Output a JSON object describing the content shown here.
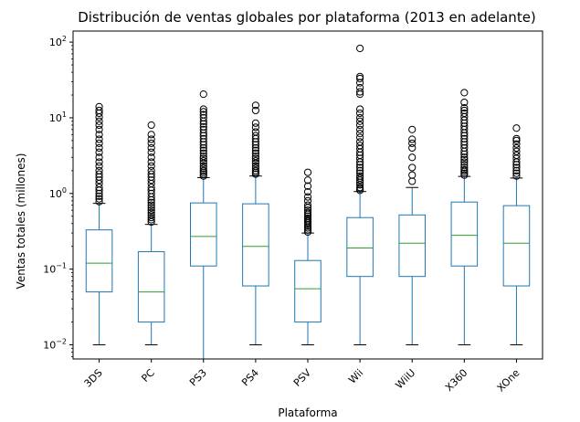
{
  "chart_data": {
    "type": "box",
    "title": "Distribución de ventas globales por plataforma (2013 en adelante)",
    "xlabel": "Plataforma",
    "ylabel": "Ventas totales (millones)",
    "yscale": "log",
    "ylim": [
      0.0065,
      140
    ],
    "yticks": [
      {
        "value": 0.01,
        "base": "10",
        "exp": "−2"
      },
      {
        "value": 0.1,
        "base": "10",
        "exp": "−1"
      },
      {
        "value": 1,
        "base": "10",
        "exp": "0"
      },
      {
        "value": 10,
        "base": "10",
        "exp": "1"
      },
      {
        "value": 100,
        "base": "10",
        "exp": "2"
      }
    ],
    "grid": false,
    "colors": {
      "box": "#1f77b4",
      "median": "#2ca02c",
      "whisker": "#1f77b4",
      "cap": "#000000",
      "flier": "#000000"
    },
    "categories": [
      "3DS",
      "PC",
      "PS3",
      "PS4",
      "PSV",
      "Wii",
      "WiiU",
      "X360",
      "XOne"
    ],
    "boxes": [
      {
        "name": "3DS",
        "whislo": 0.01,
        "q1": 0.05,
        "med": 0.12,
        "q3": 0.33,
        "whishi": 0.74,
        "fliers": [
          0.78,
          0.85,
          0.92,
          1.0,
          1.1,
          1.2,
          1.35,
          1.5,
          1.65,
          1.8,
          2.0,
          2.3,
          2.6,
          3.0,
          3.5,
          4.0,
          4.6,
          5.2,
          6.0,
          7.0,
          8.0,
          9.0,
          10.2,
          11.5,
          12.5,
          14.0
        ]
      },
      {
        "name": "PC",
        "whislo": 0.01,
        "q1": 0.02,
        "med": 0.05,
        "q3": 0.17,
        "whishi": 0.39,
        "fliers": [
          0.42,
          0.45,
          0.48,
          0.52,
          0.56,
          0.6,
          0.65,
          0.7,
          0.76,
          0.82,
          0.9,
          1.0,
          1.1,
          1.2,
          1.35,
          1.5,
          1.65,
          1.8,
          2.0,
          2.3,
          2.6,
          3.0,
          3.5,
          4.0,
          4.6,
          5.2,
          6.0,
          8.0
        ]
      },
      {
        "name": "PS3",
        "whislo": 0.005,
        "q1": 0.11,
        "med": 0.27,
        "q3": 0.75,
        "whishi": 1.62,
        "fliers": [
          1.7,
          1.8,
          1.9,
          2.0,
          2.15,
          2.3,
          2.5,
          2.7,
          2.9,
          3.1,
          3.4,
          3.7,
          4.0,
          4.4,
          4.8,
          5.3,
          5.8,
          6.3,
          7.0,
          7.6,
          8.3,
          9.0,
          10.0,
          11.0,
          12.0,
          13.0,
          20.5
        ]
      },
      {
        "name": "PS4",
        "whislo": 0.01,
        "q1": 0.06,
        "med": 0.2,
        "q3": 0.73,
        "whishi": 1.7,
        "fliers": [
          1.8,
          1.9,
          2.0,
          2.15,
          2.3,
          2.5,
          2.7,
          2.9,
          3.1,
          3.4,
          3.7,
          4.0,
          4.4,
          4.8,
          5.3,
          5.8,
          6.5,
          7.5,
          8.5,
          12.5,
          14.6
        ]
      },
      {
        "name": "PSV",
        "whislo": 0.01,
        "q1": 0.02,
        "med": 0.055,
        "q3": 0.13,
        "whishi": 0.3,
        "fliers": [
          0.31,
          0.33,
          0.35,
          0.37,
          0.39,
          0.41,
          0.43,
          0.45,
          0.47,
          0.5,
          0.53,
          0.56,
          0.6,
          0.65,
          0.7,
          0.8,
          0.9,
          1.05,
          1.25,
          1.5,
          1.9
        ]
      },
      {
        "name": "Wii",
        "whislo": 0.01,
        "q1": 0.08,
        "med": 0.19,
        "q3": 0.48,
        "whishi": 1.06,
        "fliers": [
          1.1,
          1.15,
          1.2,
          1.3,
          1.4,
          1.5,
          1.6,
          1.7,
          1.85,
          2.0,
          2.2,
          2.4,
          2.6,
          2.9,
          3.2,
          3.5,
          3.9,
          4.3,
          4.8,
          5.5,
          6.2,
          7.0,
          8.0,
          9.0,
          10.0,
          11.5,
          13.0,
          20.5,
          22.0,
          25.0,
          29.0,
          33.0,
          35.0,
          82.5
        ]
      },
      {
        "name": "WiiU",
        "whislo": 0.01,
        "q1": 0.08,
        "med": 0.22,
        "q3": 0.52,
        "whishi": 1.2,
        "fliers": [
          1.45,
          1.75,
          2.2,
          3.0,
          4.0,
          4.6,
          5.2,
          7.0
        ]
      },
      {
        "name": "X360",
        "whislo": 0.01,
        "q1": 0.11,
        "med": 0.28,
        "q3": 0.77,
        "whishi": 1.68,
        "fliers": [
          1.75,
          1.85,
          1.95,
          2.05,
          2.2,
          2.4,
          2.6,
          2.8,
          3.0,
          3.3,
          3.6,
          4.0,
          4.4,
          4.8,
          5.3,
          5.8,
          6.3,
          7.0,
          7.7,
          8.5,
          9.3,
          10.3,
          11.5,
          12.5,
          13.5,
          16.0,
          21.5
        ]
      },
      {
        "name": "XOne",
        "whislo": 0.01,
        "q1": 0.06,
        "med": 0.22,
        "q3": 0.69,
        "whishi": 1.6,
        "fliers": [
          1.7,
          1.85,
          2.0,
          2.2,
          2.4,
          2.6,
          2.9,
          3.2,
          3.6,
          4.0,
          4.5,
          5.0,
          5.3,
          7.3
        ]
      }
    ]
  }
}
